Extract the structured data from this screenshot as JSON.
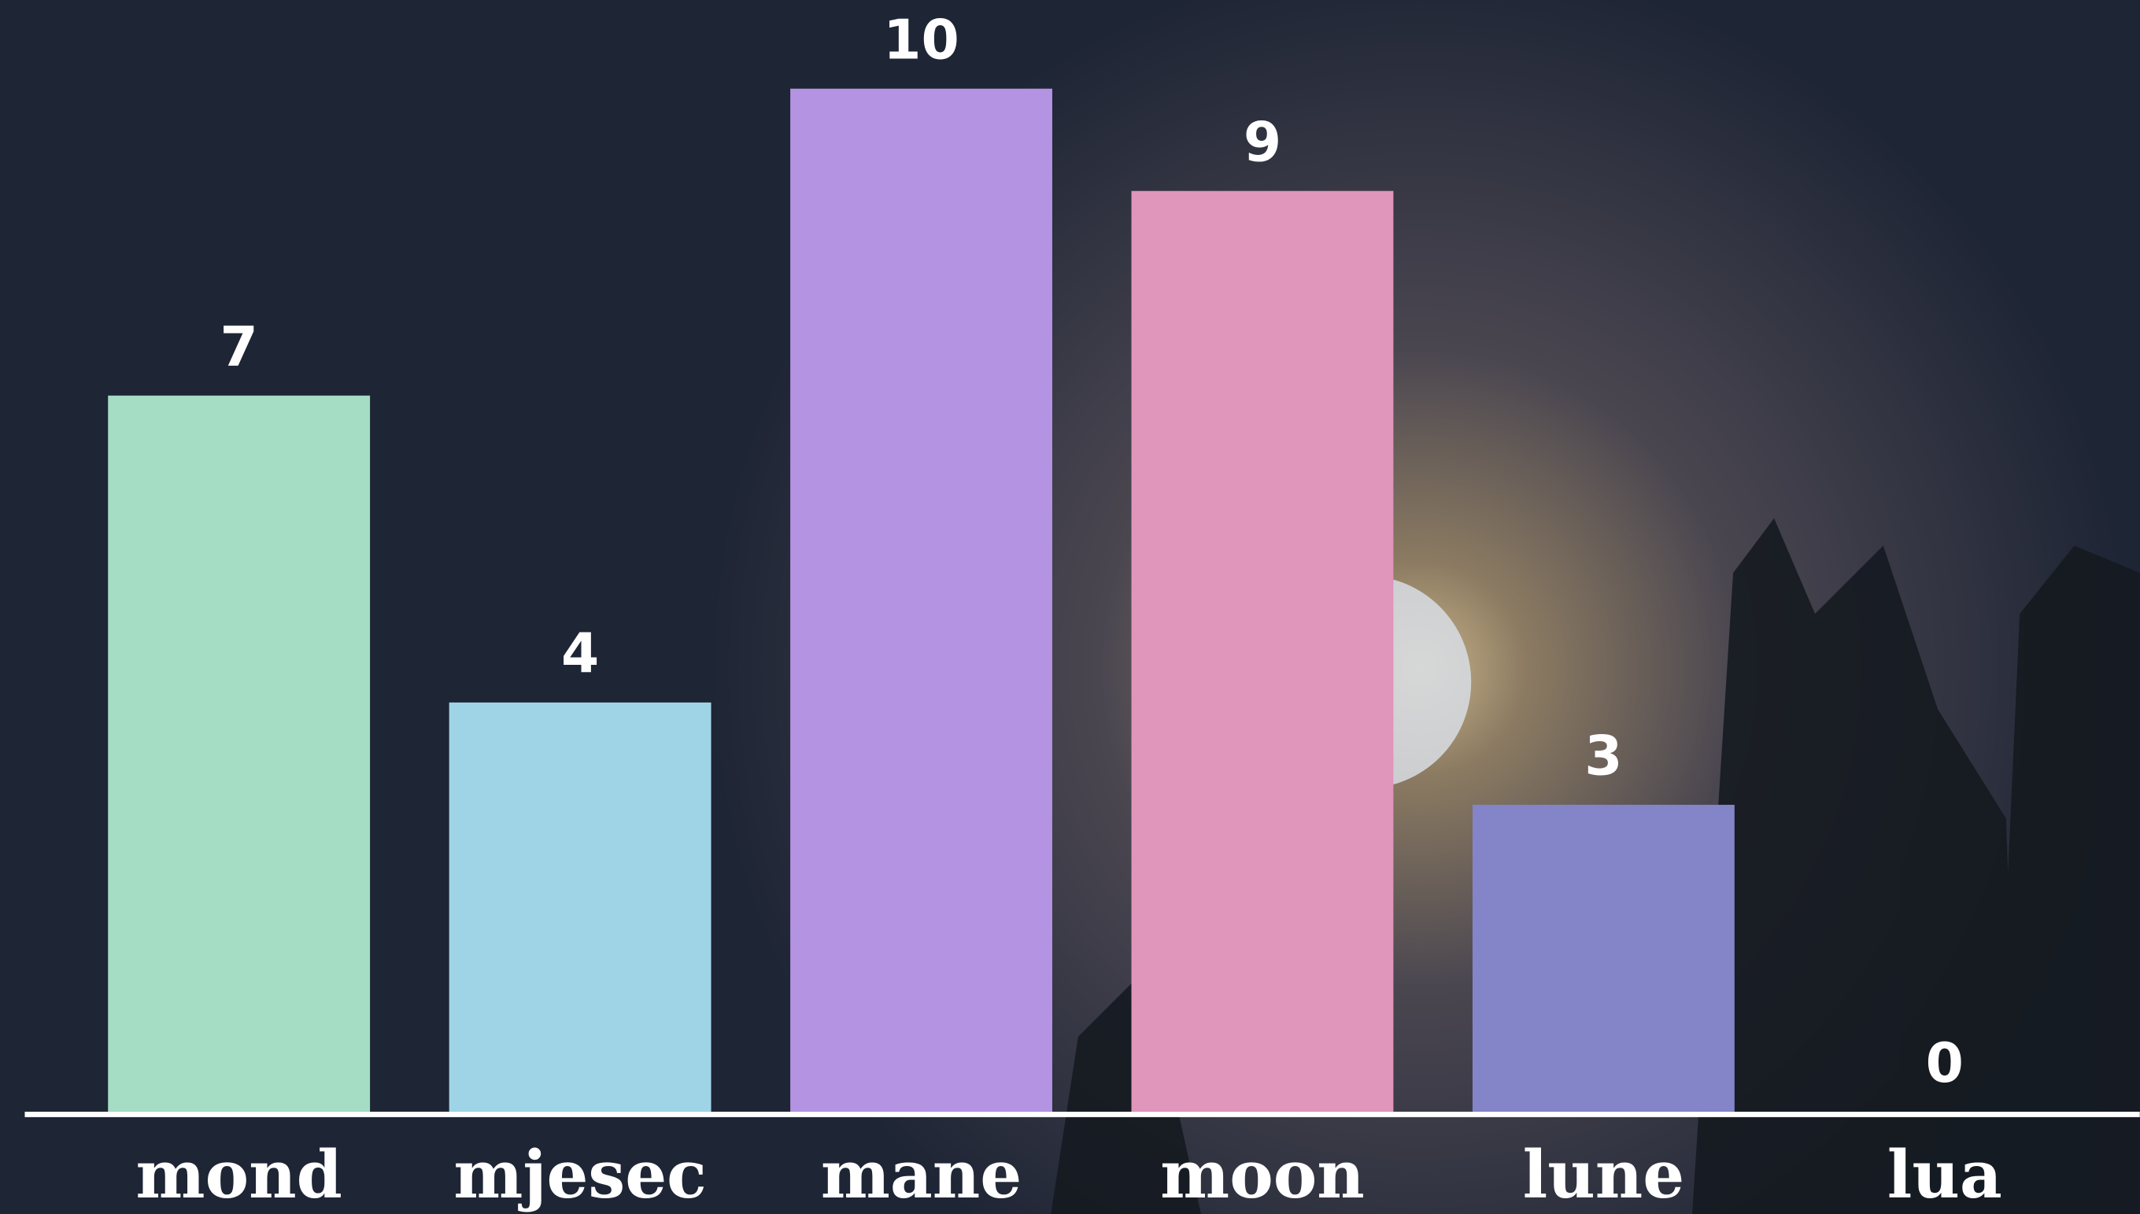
{
  "chart_data": {
    "type": "bar",
    "categories": [
      "mond",
      "mjesec",
      "mane",
      "moon",
      "lune",
      "lua"
    ],
    "values": [
      7,
      4,
      10,
      9,
      3,
      0
    ],
    "colors": [
      "#a5dcc4",
      "#9fd4e6",
      "#b393e2",
      "#e095bb",
      "#8484c8",
      "#a5dcc4"
    ],
    "ylim": [
      0,
      10
    ]
  }
}
